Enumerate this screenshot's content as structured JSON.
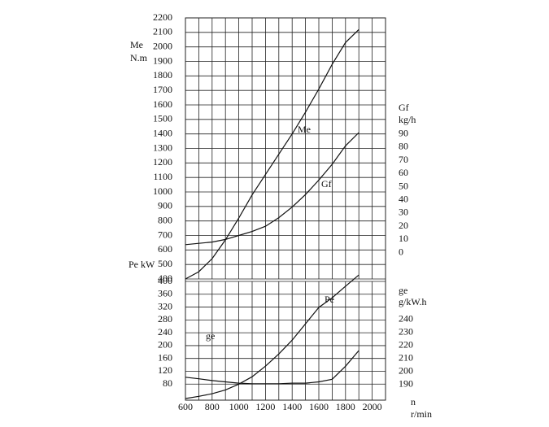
{
  "chart_data": [
    {
      "type": "line",
      "ylabel": [
        "Me",
        "N.m"
      ],
      "y2label": [
        "Gf",
        "kg/h"
      ],
      "x": [
        600,
        700,
        800,
        900,
        1000,
        1100,
        1200,
        1300,
        1400,
        1500,
        1600,
        1700,
        1800,
        1900
      ],
      "xlim": [
        600,
        2100
      ],
      "xgrid": [
        600,
        700,
        800,
        900,
        1000,
        1100,
        1200,
        1300,
        1400,
        1500,
        1600,
        1700,
        1800,
        1900,
        2000,
        2100
      ],
      "ylim": [
        400,
        2200
      ],
      "yticks": [
        400,
        500,
        600,
        700,
        800,
        900,
        1000,
        1100,
        1200,
        1300,
        1400,
        1500,
        1600,
        1700,
        1800,
        1900,
        2000,
        2100,
        2200
      ],
      "y2lim": [
        -20,
        178
      ],
      "y2ticks": [
        0,
        10,
        20,
        30,
        40,
        50,
        60,
        70,
        80,
        90
      ],
      "grid": true,
      "series": [
        {
          "name": "Me",
          "color": "#111111",
          "values": [
            400,
            450,
            540,
            670,
            820,
            980,
            1120,
            1260,
            1400,
            1550,
            1710,
            1880,
            2030,
            2120
          ]
        },
        {
          "name": "Gf",
          "color": "#111111",
          "axis": "y2",
          "values": [
            6,
            7,
            8,
            10,
            13,
            16,
            20,
            26.5,
            34.5,
            44,
            55,
            67,
            81,
            91
          ]
        }
      ]
    },
    {
      "type": "line",
      "ylabel": [
        "Pe  kW"
      ],
      "y2label": [
        "ge",
        "g/kW.h"
      ],
      "xlabel": [
        "n",
        "r/min"
      ],
      "x": [
        600,
        700,
        800,
        900,
        1000,
        1100,
        1200,
        1300,
        1400,
        1500,
        1600,
        1700,
        1800,
        1900
      ],
      "xlim": [
        600,
        2100
      ],
      "xticks": [
        600,
        800,
        1000,
        1200,
        1400,
        1600,
        1800,
        2000
      ],
      "xgrid": [
        600,
        700,
        800,
        900,
        1000,
        1100,
        1200,
        1300,
        1400,
        1500,
        1600,
        1700,
        1800,
        1900,
        2000,
        2100
      ],
      "ylim": [
        30,
        400
      ],
      "yticks": [
        80,
        120,
        160,
        200,
        240,
        280,
        320,
        360,
        400
      ],
      "y2lim": [
        178,
        269
      ],
      "y2ticks": [
        190,
        200,
        210,
        220,
        230,
        240
      ],
      "grid": true,
      "series": [
        {
          "name": "Pe",
          "color": "#111111",
          "values": [
            35,
            42,
            50,
            62,
            80,
            103,
            136,
            174,
            217,
            268,
            319,
            349,
            385,
            420
          ]
        },
        {
          "name": "ge",
          "color": "#111111",
          "axis": "y2",
          "values": [
            195.6,
            194.4,
            193,
            192,
            191,
            190.6,
            190.6,
            190.6,
            191,
            191,
            192,
            194,
            204,
            216
          ]
        }
      ]
    }
  ]
}
